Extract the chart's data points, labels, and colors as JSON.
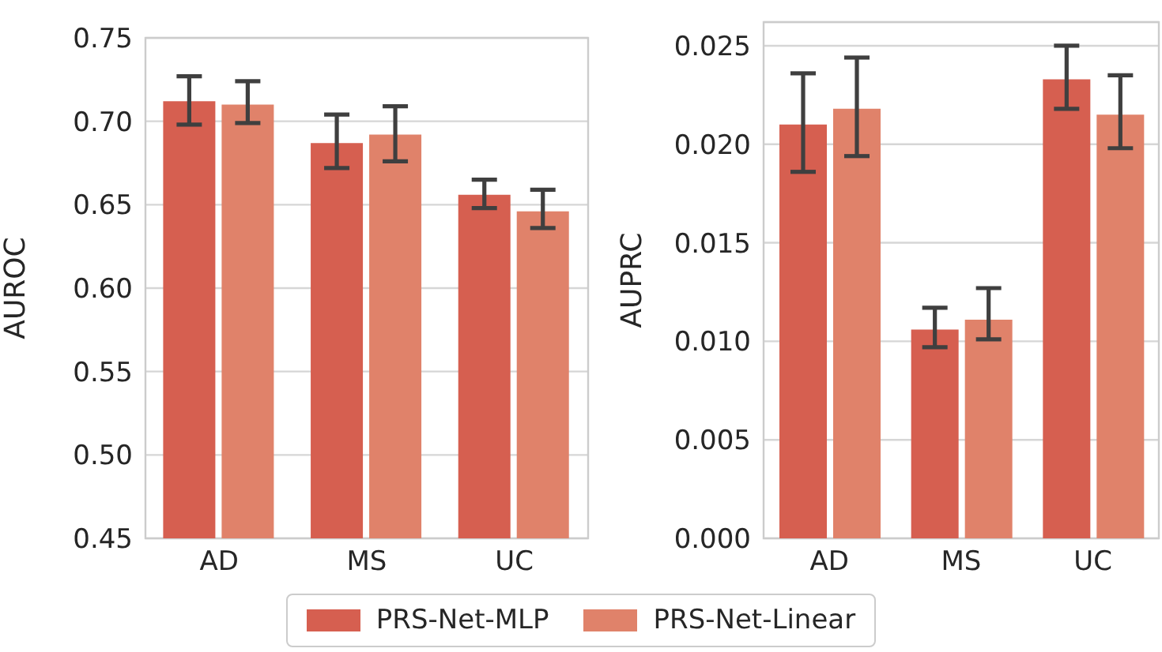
{
  "chart_data": [
    {
      "type": "bar",
      "ylabel": "AUROC",
      "categories": [
        "AD",
        "MS",
        "UC"
      ],
      "series": [
        {
          "name": "PRS-Net-MLP",
          "color": "#d65f50",
          "values": [
            0.712,
            0.687,
            0.656
          ],
          "errors": [
            [
              0.698,
              0.727
            ],
            [
              0.672,
              0.704
            ],
            [
              0.648,
              0.665
            ]
          ]
        },
        {
          "name": "PRS-Net-Linear",
          "color": "#e0826a",
          "values": [
            0.71,
            0.692,
            0.646
          ],
          "errors": [
            [
              0.699,
              0.724
            ],
            [
              0.676,
              0.709
            ],
            [
              0.636,
              0.659
            ]
          ]
        }
      ],
      "ylim": [
        0.45,
        0.75
      ],
      "yticks": [
        {
          "value": 0.45,
          "label": "0.45"
        },
        {
          "value": 0.5,
          "label": "0.50"
        },
        {
          "value": 0.55,
          "label": "0.55"
        },
        {
          "value": 0.6,
          "label": "0.60"
        },
        {
          "value": 0.65,
          "label": "0.65"
        },
        {
          "value": 0.7,
          "label": "0.70"
        },
        {
          "value": 0.75,
          "label": "0.75"
        }
      ],
      "grid": "y",
      "legend": "bottom"
    },
    {
      "type": "bar",
      "ylabel": "AUPRC",
      "categories": [
        "AD",
        "MS",
        "UC"
      ],
      "series": [
        {
          "color": "#d65f50",
          "values": [
            0.021,
            0.0106,
            0.0233
          ],
          "errors": [
            [
              0.0186,
              0.0236
            ],
            [
              0.0097,
              0.0117
            ],
            [
              0.0218,
              0.025
            ]
          ]
        },
        {
          "color": "#e0826a",
          "values": [
            0.0218,
            0.0111,
            0.0215
          ],
          "errors": [
            [
              0.0194,
              0.0244
            ],
            [
              0.0101,
              0.0127
            ],
            [
              0.0198,
              0.0235
            ]
          ]
        }
      ],
      "ylim": [
        0,
        0.0262
      ],
      "yticks": [
        {
          "value": 0,
          "label": "0.000"
        },
        {
          "value": 0.005,
          "label": "0.005"
        },
        {
          "value": 0.01,
          "label": "0.010"
        },
        {
          "value": 0.015,
          "label": "0.015"
        },
        {
          "value": 0.02,
          "label": "0.020"
        },
        {
          "value": 0.025,
          "label": "0.025"
        }
      ],
      "grid": "y"
    }
  ]
}
